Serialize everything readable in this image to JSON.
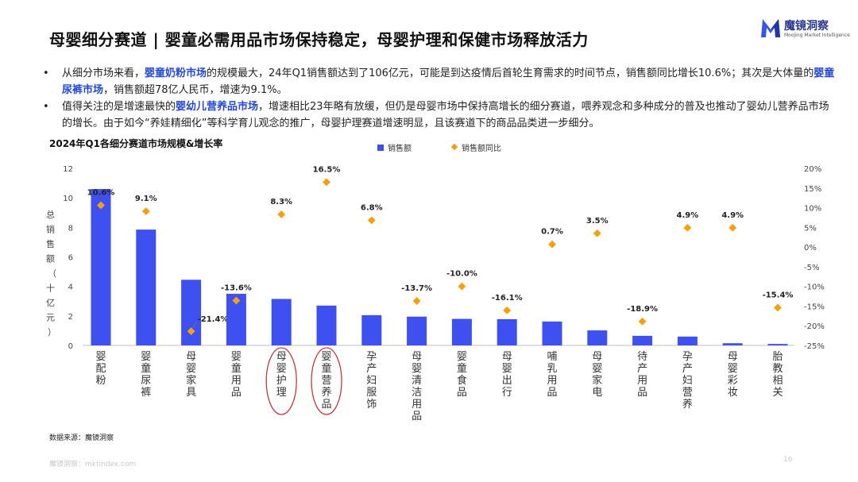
{
  "header": {
    "title": "母婴细分赛道 | 婴童必需用品市场保持稳定，母婴护理和保健市场释放活力",
    "logo_name": "魔镜洞察",
    "logo_sub": "Moojing Market Intelligence"
  },
  "bullets": [
    {
      "parts": [
        {
          "text": "从细分市场来看，",
          "hl": false
        },
        {
          "text": "婴童奶粉市场",
          "hl": true
        },
        {
          "text": "的规模最大，24年Q1销售额达到了106亿元，可能是到达疫情后首轮生育需求的时间节点，销售额同比增长10.6%；其次是大体量的",
          "hl": false
        },
        {
          "text": "婴童尿裤市场",
          "hl": true
        },
        {
          "text": "，销售额超78亿人民币，增速为9.1%。",
          "hl": false
        }
      ]
    },
    {
      "parts": [
        {
          "text": "值得关注的是增速最快的",
          "hl": false
        },
        {
          "text": "婴幼儿营养品市场",
          "hl": true
        },
        {
          "text": "，增速相比23年略有放缓，但仍是母婴市场中保持高增长的细分赛道，喂养观念和多种成分的普及也推动了婴幼儿营养品市场的增长。由于如今“养娃精细化”等科学育儿观念的推广，母婴护理赛道增速明显，且该赛道下的商品品类进一步细分。",
          "hl": false
        }
      ]
    }
  ],
  "chart_data": {
    "type": "bar",
    "title": "2024年Q1各细分赛道市场规模&增长率",
    "ylabel": "总销售额（十亿元）",
    "ylim": [
      0,
      12
    ],
    "yticks": [
      0,
      2,
      4,
      6,
      8,
      10,
      12
    ],
    "y2lim": [
      -25,
      20
    ],
    "y2ticks": [
      "20%",
      "15%",
      "10%",
      "5%",
      "0%",
      "-5%",
      "-10%",
      "-15%",
      "-20%",
      "-25%"
    ],
    "categories": [
      "婴配粉",
      "婴童尿裤",
      "母婴家具",
      "婴童用品",
      "母婴护理",
      "婴童营养品",
      "孕产妇服饰",
      "母婴清洁用品",
      "婴童食品",
      "母婴出行",
      "哺乳用品",
      "母婴家电",
      "待产用品",
      "孕产妇营养",
      "母婴彩妆",
      "胎教相关"
    ],
    "highlighted": [
      "母婴护理",
      "婴童营养品"
    ],
    "series": [
      {
        "name": "销售额",
        "type": "bar",
        "axis": "left",
        "color": "#3e50f0",
        "values": [
          10.6,
          7.85,
          4.45,
          3.5,
          3.15,
          2.7,
          2.05,
          1.95,
          1.8,
          1.78,
          1.62,
          1.02,
          0.65,
          0.6,
          0.15,
          0.1
        ]
      },
      {
        "name": "销售额同比",
        "type": "scatter",
        "axis": "right",
        "color": "#f5a00e",
        "values": [
          10.6,
          9.1,
          -21.4,
          -13.6,
          8.3,
          16.5,
          6.8,
          -13.7,
          -10.0,
          -16.1,
          0.7,
          3.5,
          -18.9,
          4.9,
          4.9,
          -15.4
        ],
        "labels": [
          "10.6%",
          "9.1%",
          "-21.4%",
          "-13.6%",
          "8.3%",
          "16.5%",
          "6.8%",
          "-13.7%",
          "-10.0%",
          "-16.1%",
          "0.7%",
          "3.5%",
          "-18.9%",
          "4.9%",
          "4.9%",
          "-15.4%"
        ]
      }
    ],
    "legend": "top-center"
  },
  "source": "数据来源：魔镜洞察",
  "footer": "魔镜洞察：mktindex.com",
  "page_number": "16"
}
